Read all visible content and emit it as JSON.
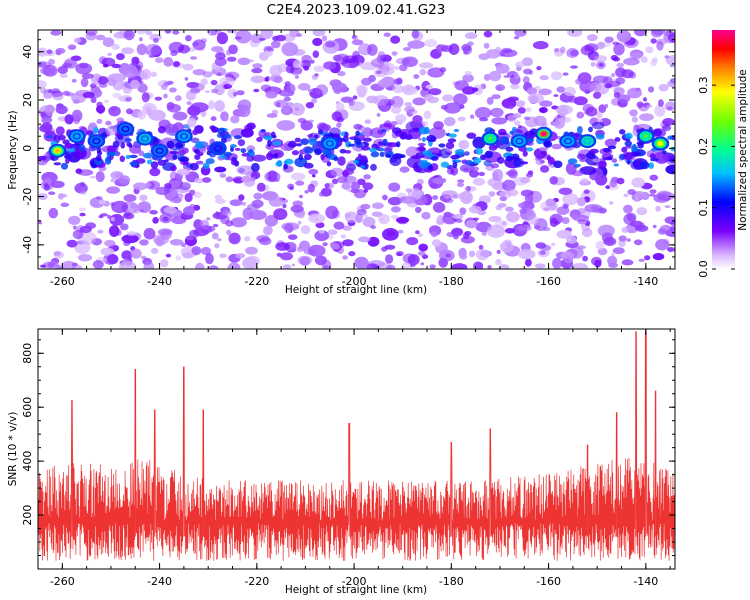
{
  "title": "C2E4.2023.109.02.41.G23",
  "chart_data": [
    {
      "type": "heatmap",
      "xlabel": "Height of straight line (km)",
      "ylabel": "Frequency (Hz)",
      "xlim": [
        -265,
        -134
      ],
      "ylim": [
        -50,
        49
      ],
      "xticks": [
        -260,
        -240,
        -220,
        -200,
        -180,
        -160,
        -140
      ],
      "yticks": [
        -40,
        -20,
        0,
        20,
        40
      ],
      "colorbar": {
        "label": "Normalized spectral amplitude",
        "range": [
          0.0,
          0.39
        ],
        "ticks": [
          0.0,
          0.1,
          0.2,
          0.3
        ],
        "colors": [
          "#ffffff",
          "#6a00ff",
          "#0000ff",
          "#00bfff",
          "#00ff80",
          "#80ff00",
          "#ffff00",
          "#ff8000",
          "#ff0000",
          "#ff0080"
        ]
      },
      "band_center_hz": 0,
      "hotspots": [
        {
          "x": -261,
          "y": -1,
          "value": 0.3
        },
        {
          "x": -257,
          "y": 5,
          "value": 0.14
        },
        {
          "x": -253,
          "y": 3,
          "value": 0.13
        },
        {
          "x": -247,
          "y": 8,
          "value": 0.13
        },
        {
          "x": -243,
          "y": 4,
          "value": 0.15
        },
        {
          "x": -240,
          "y": -1,
          "value": 0.13
        },
        {
          "x": -235,
          "y": 5,
          "value": 0.14
        },
        {
          "x": -228,
          "y": 0,
          "value": 0.12
        },
        {
          "x": -205,
          "y": 2,
          "value": 0.14
        },
        {
          "x": -172,
          "y": 4,
          "value": 0.2
        },
        {
          "x": -166,
          "y": 3,
          "value": 0.14
        },
        {
          "x": -161,
          "y": 6,
          "value": 0.39
        },
        {
          "x": -156,
          "y": 3,
          "value": 0.14
        },
        {
          "x": -152,
          "y": 3,
          "value": 0.17
        },
        {
          "x": -140,
          "y": 5,
          "value": 0.2
        },
        {
          "x": -137,
          "y": 2,
          "value": 0.27
        }
      ]
    },
    {
      "type": "line",
      "xlabel": "Height of straight line (km)",
      "ylabel": "SNR (10 * v/v)",
      "xlim": [
        -265,
        -134
      ],
      "ylim": [
        0,
        890
      ],
      "xticks": [
        -260,
        -240,
        -220,
        -200,
        -180,
        -160,
        -140
      ],
      "yticks": [
        200,
        400,
        600,
        800
      ],
      "color": "#ee3333",
      "peaks": [
        {
          "x": -258,
          "y": 625
        },
        {
          "x": -245,
          "y": 740
        },
        {
          "x": -241,
          "y": 590
        },
        {
          "x": -235,
          "y": 750
        },
        {
          "x": -231,
          "y": 590
        },
        {
          "x": -201,
          "y": 540
        },
        {
          "x": -180,
          "y": 470
        },
        {
          "x": -172,
          "y": 520
        },
        {
          "x": -152,
          "y": 460
        },
        {
          "x": -146,
          "y": 580
        },
        {
          "x": -142,
          "y": 880
        },
        {
          "x": -140,
          "y": 880
        },
        {
          "x": -138,
          "y": 660
        }
      ]
    }
  ]
}
